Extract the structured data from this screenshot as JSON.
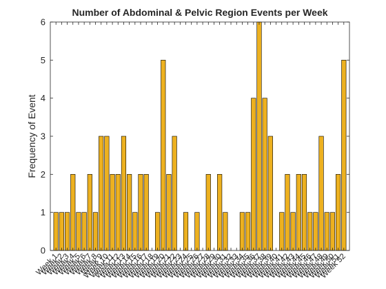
{
  "chart_data": {
    "type": "bar",
    "title": "Number of Abdominal & Pelvic Region Events per Week",
    "xlabel": "",
    "ylabel": "Frequency of Event",
    "ylim": [
      0,
      6
    ],
    "yticks": [
      0,
      1,
      2,
      3,
      4,
      5,
      6
    ],
    "categories": [
      "Week 1",
      "Week 2",
      "Week 3",
      "Week 4",
      "Week 5",
      "Week 6",
      "Week 7",
      "Week 8",
      "Week 9",
      "Week 10",
      "Week 11",
      "Week 12",
      "Week 13",
      "Week 14",
      "Week 15",
      "Week 16",
      "Week 17",
      "Week 18",
      "Week 19",
      "Week 20",
      "Week 21",
      "Week 22",
      "Week 23",
      "Week 24",
      "Week 25",
      "Week 26",
      "Week 27",
      "Week 28",
      "Week 29",
      "Week 30",
      "Week 31",
      "Week 32",
      "Week 33",
      "Week 34",
      "Week 35",
      "Week 36",
      "Week 37",
      "Week 38",
      "Week 39",
      "Week 40",
      "Week 41",
      "Week 42",
      "Week 43",
      "Week 44",
      "Week 45",
      "Week 46",
      "Week 47",
      "Week 48",
      "Week 49",
      "Week 50",
      "Week 51",
      "Week 52"
    ],
    "values": [
      1,
      1,
      1,
      2,
      1,
      1,
      2,
      1,
      3,
      3,
      2,
      2,
      3,
      2,
      1,
      2,
      2,
      0,
      1,
      5,
      2,
      3,
      0,
      1,
      0,
      1,
      0,
      2,
      0,
      2,
      1,
      0,
      0,
      1,
      1,
      4,
      6,
      4,
      3,
      0,
      1,
      2,
      1,
      2,
      2,
      1,
      1,
      3,
      1,
      1,
      2,
      5
    ],
    "bar_color": "#EDB120",
    "bar_edge_color": "#000000",
    "grid": false,
    "legend": "none"
  }
}
